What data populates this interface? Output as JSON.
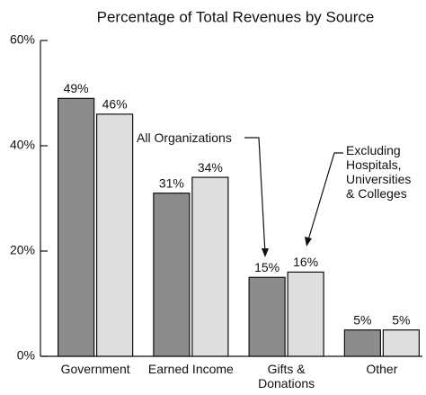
{
  "chart_data": {
    "type": "bar",
    "title": "Percentage of Total Revenues by Source",
    "categories": [
      "Government",
      "Earned Income",
      "Gifts & Donations",
      "Other"
    ],
    "series": [
      {
        "name": "All Organizations",
        "color": "#8c8c8c",
        "values": [
          49,
          31,
          15,
          5
        ],
        "value_labels": [
          "49%",
          "31%",
          "15%",
          "5%"
        ]
      },
      {
        "name": "Excluding Hospitals, Universities & Colleges",
        "color": "#dedede",
        "values": [
          46,
          34,
          16,
          5
        ],
        "value_labels": [
          "46%",
          "34%",
          "16%",
          "5%"
        ]
      }
    ],
    "ylim": [
      0,
      60
    ],
    "yticks": [
      {
        "value": 0,
        "label": "0%"
      },
      {
        "value": 20,
        "label": "20%"
      },
      {
        "value": 40,
        "label": "40%"
      },
      {
        "value": 60,
        "label": "60%"
      }
    ],
    "grid": false
  }
}
